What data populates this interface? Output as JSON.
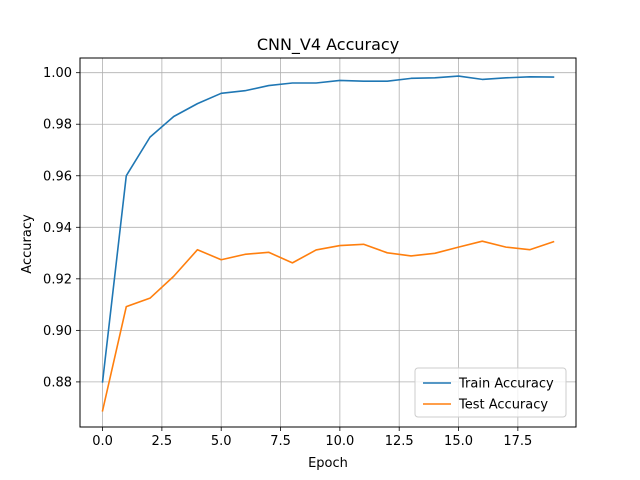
{
  "chart_data": {
    "type": "line",
    "title": "CNN_V4 Accuracy",
    "xlabel": "Epoch",
    "ylabel": "Accuracy",
    "xlim": [
      -0.95,
      19.95
    ],
    "ylim": [
      0.8625,
      1.0057
    ],
    "xticks": [
      0.0,
      2.5,
      5.0,
      7.5,
      10.0,
      12.5,
      15.0,
      17.5
    ],
    "xtick_labels": [
      "0.0",
      "2.5",
      "5.0",
      "7.5",
      "10.0",
      "12.5",
      "15.0",
      "17.5"
    ],
    "yticks": [
      0.88,
      0.9,
      0.92,
      0.94,
      0.96,
      0.98,
      1.0
    ],
    "ytick_labels": [
      "0.88",
      "0.90",
      "0.92",
      "0.94",
      "0.96",
      "0.98",
      "1.00"
    ],
    "grid": true,
    "legend_position": "bottom-right",
    "x": [
      0,
      1,
      2,
      3,
      4,
      5,
      6,
      7,
      8,
      9,
      10,
      11,
      12,
      13,
      14,
      15,
      16,
      17,
      18,
      19
    ],
    "series": [
      {
        "name": "Train Accuracy",
        "color": "#1f77b4",
        "values": [
          0.88,
          0.96,
          0.975,
          0.983,
          0.988,
          0.992,
          0.993,
          0.995,
          0.996,
          0.996,
          0.997,
          0.9967,
          0.9967,
          0.9978,
          0.998,
          0.9987,
          0.9974,
          0.998,
          0.9984,
          0.9983
        ]
      },
      {
        "name": "Test Accuracy",
        "color": "#ff7f0e",
        "values": [
          0.8688,
          0.9092,
          0.9125,
          0.921,
          0.9313,
          0.9274,
          0.9295,
          0.9303,
          0.9262,
          0.9312,
          0.9329,
          0.9334,
          0.9301,
          0.9289,
          0.9299,
          0.9323,
          0.9346,
          0.9323,
          0.9313,
          0.9344
        ]
      }
    ]
  }
}
